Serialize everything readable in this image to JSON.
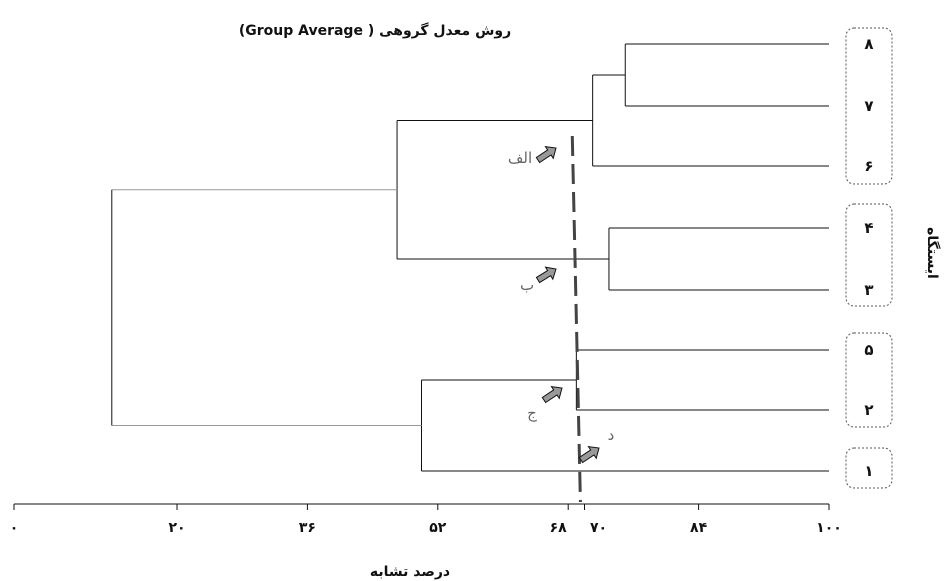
{
  "chart_data": {
    "type": "dendrogram",
    "title": "روش معدل گروهی ( Group Average)",
    "xlabel": "درصد تشابه",
    "ylabel": "ایستگاه",
    "xlim": [
      0,
      100
    ],
    "x_ticks": [
      0,
      20,
      36,
      52,
      68,
      70,
      84,
      100
    ],
    "x_tick_labels": [
      "۰",
      "۲۰",
      "۳۶",
      "۵۲",
      "۶۸",
      "۷۰",
      "۸۴",
      "۱۰۰"
    ],
    "leaves": [
      "۸",
      "۷",
      "۶",
      "۴",
      "۳",
      "۵",
      "۲",
      "۱"
    ],
    "merges": [
      {
        "items": [
          "۸",
          "۷"
        ],
        "similarity": 75
      },
      {
        "items": [
          "۸-۷",
          "۶"
        ],
        "similarity": 71
      },
      {
        "items": [
          "۴",
          "۳"
        ],
        "similarity": 73
      },
      {
        "items": [
          "۸-۷-۶",
          "۴-۳"
        ],
        "similarity": 47
      },
      {
        "items": [
          "۵",
          "۲"
        ],
        "similarity": 69
      },
      {
        "items": [
          "۵-۲",
          "۱"
        ],
        "similarity": 50
      },
      {
        "items": [
          "top",
          "bottom"
        ],
        "similarity": 12
      }
    ],
    "cutoff_line": {
      "similarity_top": 68.5,
      "similarity_bottom": 69.5,
      "style": "dashed"
    },
    "cluster_labels": [
      "الف",
      "ب",
      "ج",
      "د"
    ],
    "leaf_groups": [
      [
        "۸",
        "۷",
        "۶"
      ],
      [
        "۴",
        "۳"
      ],
      [
        "۵",
        "۲"
      ],
      [
        "۱"
      ]
    ]
  }
}
